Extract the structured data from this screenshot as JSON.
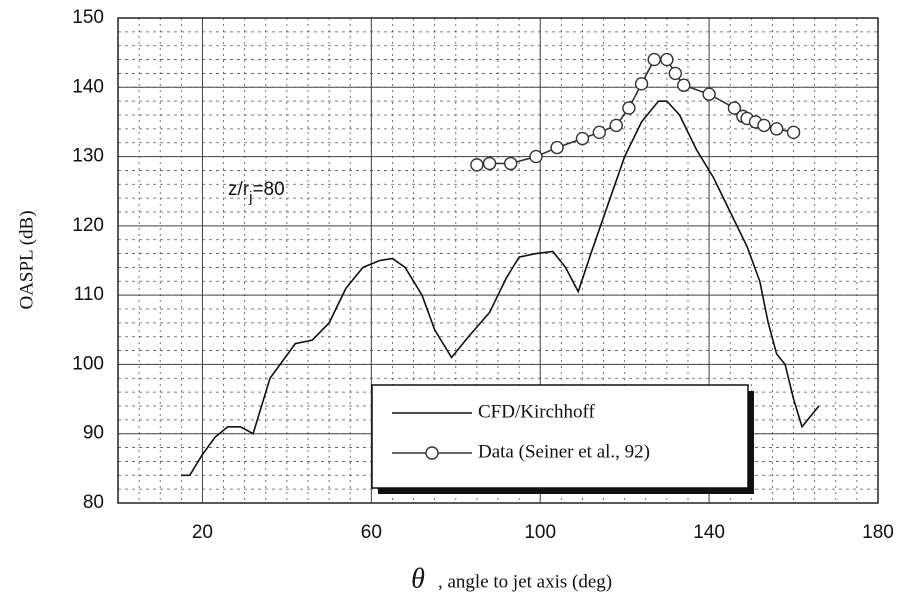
{
  "chart_data": {
    "type": "line",
    "y_label": "OASPL (dB)",
    "x_label_symbol": "θ",
    "x_label": ", angle to jet axis (deg)",
    "annotation": {
      "text": "z/r",
      "sub": "j",
      "suffix": "=80"
    },
    "xlim": [
      0,
      180
    ],
    "xticks": [
      20,
      60,
      100,
      140,
      180
    ],
    "ylim": [
      80,
      150
    ],
    "yticks": [
      80,
      90,
      100,
      110,
      120,
      130,
      140,
      150
    ],
    "grid": true,
    "legend": "lower right",
    "series": [
      {
        "name": "CFD/Kirchhoff",
        "color": "#111111",
        "marker": "none",
        "x": [
          15,
          17,
          20,
          23,
          26,
          29,
          32,
          36,
          42,
          46,
          50,
          54,
          58,
          62,
          65,
          68,
          72,
          75,
          79,
          83,
          88,
          92,
          95,
          99,
          103,
          106,
          109,
          112,
          116,
          120,
          124,
          128,
          130,
          133,
          137,
          141,
          145,
          149,
          152,
          154,
          156,
          158,
          160,
          162,
          164,
          166
        ],
        "values": [
          84,
          84,
          87,
          89.5,
          91,
          91,
          90,
          98,
          103,
          103.5,
          106,
          111,
          114,
          115,
          115.3,
          114,
          110,
          105,
          101,
          104,
          107.5,
          112.5,
          115.5,
          116,
          116.3,
          114,
          110.5,
          116,
          123,
          130,
          135,
          138,
          138,
          136,
          131,
          127,
          122,
          117,
          112,
          106,
          101.5,
          100,
          95,
          91,
          92.5,
          94
        ]
      },
      {
        "name": "Data (Seiner et al., 92)",
        "color": "#333333",
        "marker": "circle",
        "x": [
          85,
          88,
          93,
          99,
          104,
          110,
          114,
          118,
          121,
          124,
          127,
          130,
          132,
          134,
          140,
          146,
          148,
          149,
          151,
          153,
          156,
          160
        ],
        "values": [
          128.8,
          129,
          129,
          130,
          131.3,
          132.6,
          133.5,
          134.5,
          137,
          140.5,
          144,
          144,
          142,
          140.3,
          139,
          137,
          135.8,
          135.5,
          135,
          134.5,
          134,
          133.5
        ]
      }
    ]
  }
}
